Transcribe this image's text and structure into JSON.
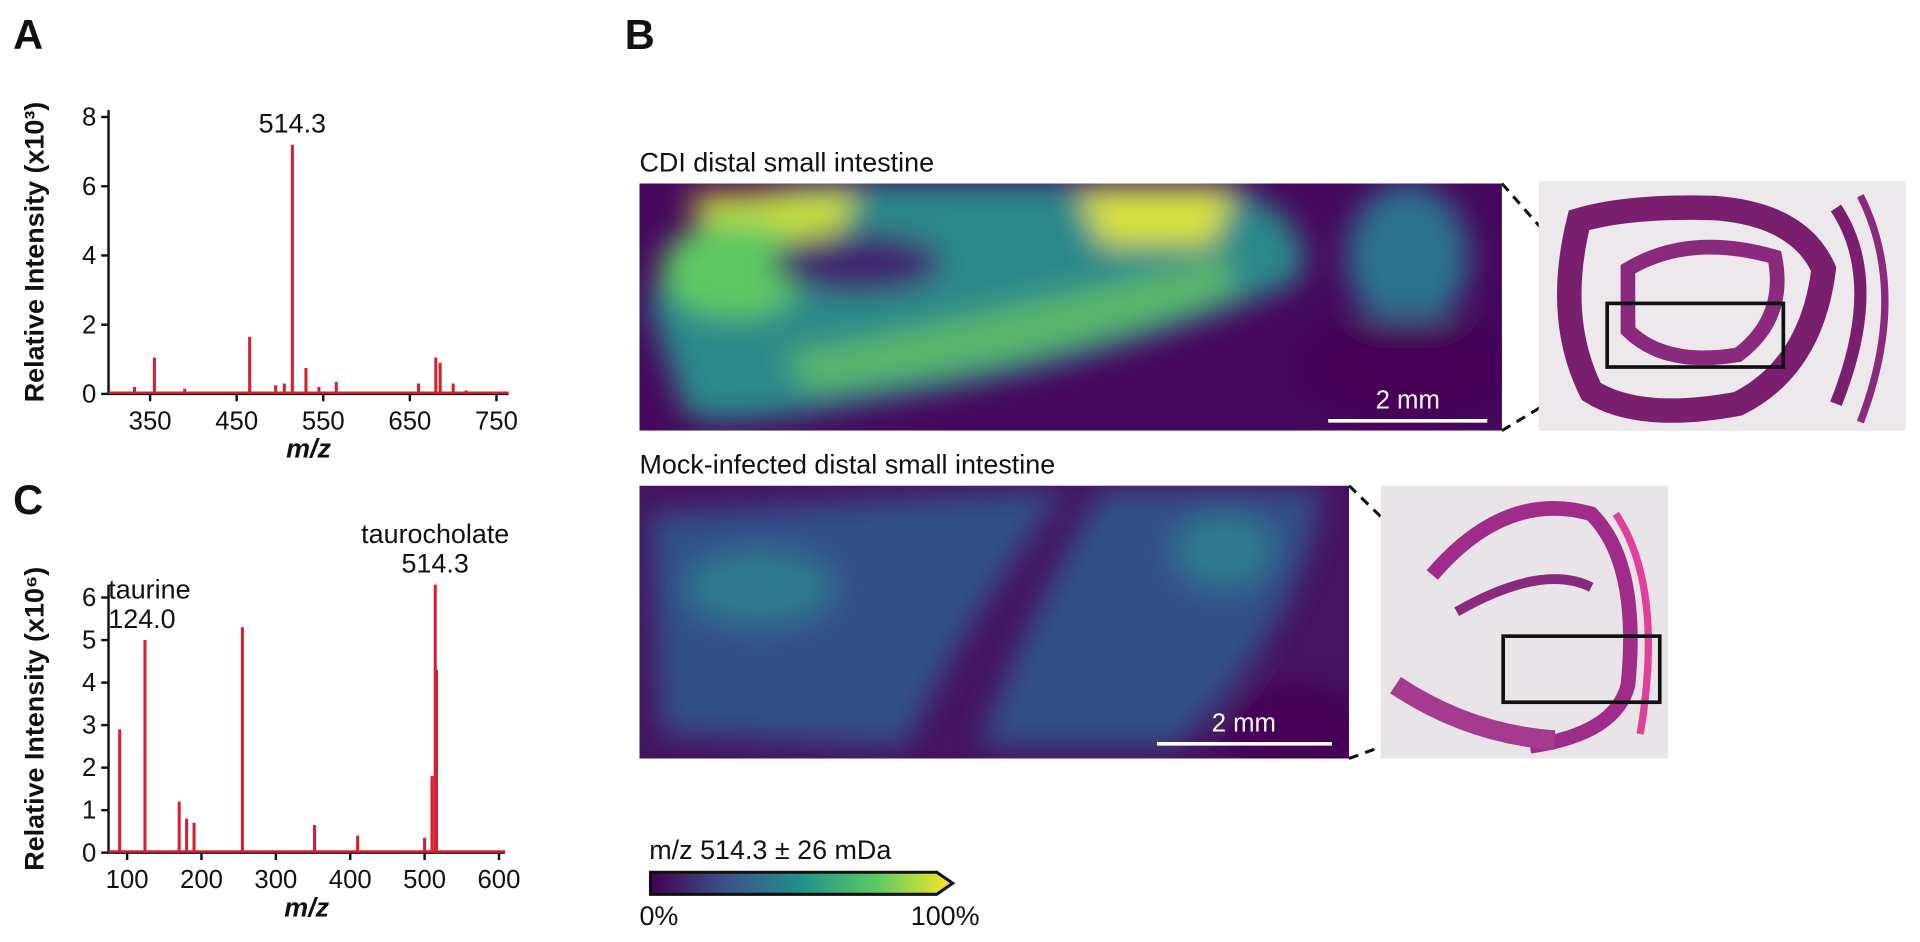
{
  "chart_data": [
    {
      "type": "stem",
      "panel": "A",
      "ylabel": "Relative Intensity (x10³)",
      "xlabel": "m/z",
      "color": "#d62031",
      "x": [
        332,
        355,
        390,
        465,
        495,
        505,
        514.3,
        530,
        545,
        565,
        660,
        680,
        685,
        700,
        715
      ],
      "values": [
        0.2,
        1.05,
        0.15,
        1.65,
        0.25,
        0.3,
        7.2,
        0.75,
        0.2,
        0.35,
        0.3,
        1.05,
        0.9,
        0.3,
        0.1
      ],
      "annotations": [
        {
          "x": 514.3,
          "text": [
            "514.3"
          ]
        }
      ],
      "xlim": [
        302,
        764
      ],
      "ylim": [
        0,
        8.2
      ],
      "xticks": [
        350,
        450,
        550,
        650,
        750
      ],
      "yticks": [
        0,
        2,
        4,
        6,
        8
      ]
    },
    {
      "type": "stem",
      "panel": "C",
      "ylabel": "Relative Intensity (x10⁶)",
      "xlabel": "m/z",
      "color": "#d62031",
      "x": [
        90,
        124,
        170,
        180,
        190,
        255,
        352,
        410,
        500,
        510,
        514.3,
        516
      ],
      "values": [
        2.9,
        5.0,
        1.2,
        0.8,
        0.7,
        5.3,
        0.65,
        0.4,
        0.35,
        1.8,
        6.3,
        4.3
      ],
      "annotations": [
        {
          "x": 124,
          "text": [
            "taurine",
            "124.0"
          ]
        },
        {
          "x": 514.3,
          "text": [
            "taurocholate",
            "514.3"
          ]
        }
      ],
      "xlim": [
        75,
        608
      ],
      "ylim": [
        0,
        6.3
      ],
      "xticks": [
        100,
        200,
        300,
        400,
        500,
        600
      ],
      "yticks": [
        0,
        1,
        2,
        3,
        4,
        5,
        6
      ]
    }
  ],
  "imaging": {
    "panel": "B",
    "images": [
      {
        "title": "CDI distal small intestine",
        "scale_bar": "2 mm"
      },
      {
        "title": "Mock-infected distal small intestine",
        "scale_bar": "2 mm"
      }
    ],
    "colorbar": {
      "title": "m/z 514.3 ± 26 mDa",
      "min_label": "0%",
      "max_label": "100%"
    }
  }
}
